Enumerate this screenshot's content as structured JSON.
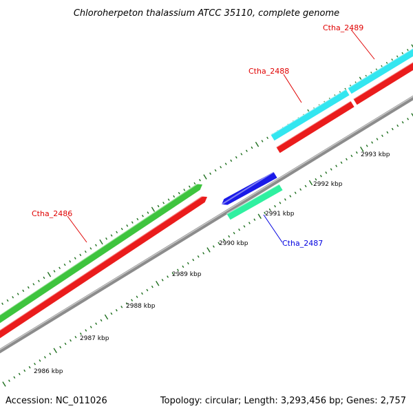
{
  "title": "Chloroherpeton thalassium ATCC 35110, complete genome",
  "footer": {
    "accession": "Accession: NC_011026",
    "summary": "Topology: circular; Length: 3,293,456 bp; Genes: 2,757"
  },
  "colors": {
    "backbone": "#8c8c8c",
    "forward_cds": "#3ec43e",
    "reverse_cds": "#ea1c1c",
    "trna": "#1a1ae8",
    "rrna": "#2ff0a0",
    "cyan_feature": "#33e6f0",
    "tick": "#1d6e1d",
    "label_red": "#e00000",
    "label_blue": "#0000e0"
  },
  "tick_labels": [
    "2986 kbp",
    "2987 kbp",
    "2988 kbp",
    "2989 kbp",
    "2990 kbp",
    "2991 kbp",
    "2992 kbp",
    "2993 kbp"
  ],
  "gene_labels": [
    {
      "name": "Ctha_2489",
      "color": "red"
    },
    {
      "name": "Ctha_2488",
      "color": "red"
    },
    {
      "name": "Ctha_2486",
      "color": "red"
    },
    {
      "name": "Ctha_2487",
      "color": "blue"
    }
  ]
}
